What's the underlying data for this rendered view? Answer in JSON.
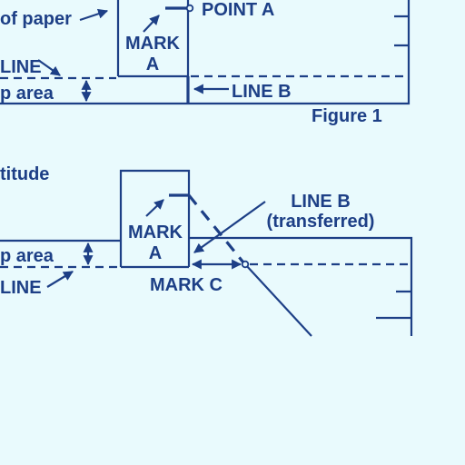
{
  "figure1": {
    "edge_of_paper_label": "of paper",
    "point_a_label": "POINT A",
    "mark_a_line1": "MARK",
    "mark_a_line2": "A",
    "line_label": "LINE",
    "lap_area_label": "p area",
    "line_b_label": "LINE B",
    "caption": "Figure 1"
  },
  "figure2": {
    "heading_partial": "titude",
    "mark_a_line1": "MARK",
    "mark_a_line2": "A",
    "line_b_transferred_line1": "LINE B",
    "line_b_transferred_line2": "(transferred)",
    "lap_area_label": "p area",
    "line_label": "LINE",
    "mark_c_label": "MARK C"
  },
  "colors": {
    "ink": "#1d3f86",
    "background": "#e9fafd"
  }
}
